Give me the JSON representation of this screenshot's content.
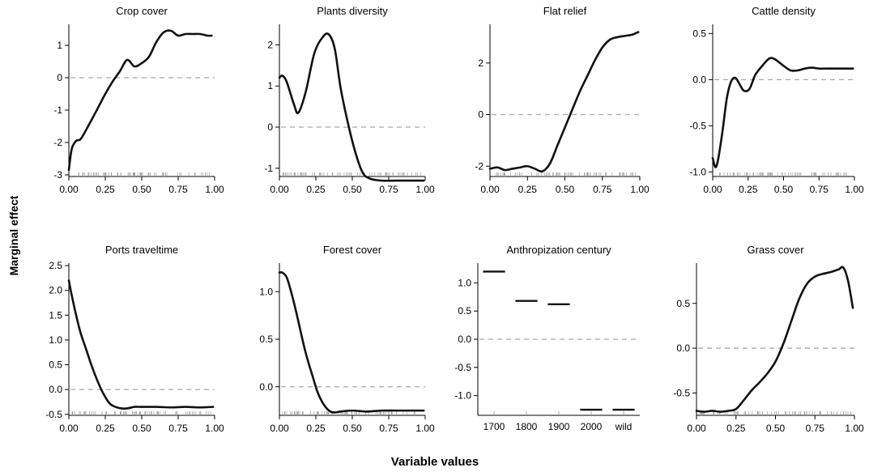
{
  "figure": {
    "ylabel": "Marginal effect",
    "xlabel": "Variable values"
  },
  "chart_data": [
    {
      "type": "line",
      "title": "Crop cover",
      "xlim": [
        0,
        1
      ],
      "ylim": [
        -3.05,
        1.65
      ],
      "xticks": [
        0,
        0.25,
        0.5,
        0.75,
        1
      ],
      "xtick_labels": [
        "0.00",
        "0.25",
        "0.50",
        "0.75",
        "1.00"
      ],
      "yticks": [
        -3,
        -2,
        -1,
        0,
        1
      ],
      "ytick_labels": [
        "-3",
        "-2",
        "-1",
        "0",
        "1"
      ],
      "reference_line": 0,
      "x": [
        0.0,
        0.02,
        0.05,
        0.08,
        0.12,
        0.18,
        0.25,
        0.3,
        0.35,
        0.4,
        0.45,
        0.5,
        0.55,
        0.6,
        0.65,
        0.7,
        0.75,
        0.8,
        0.85,
        0.9,
        0.95,
        0.98
      ],
      "y": [
        -2.85,
        -2.2,
        -1.95,
        -1.9,
        -1.6,
        -1.1,
        -0.5,
        -0.12,
        0.2,
        0.55,
        0.35,
        0.45,
        0.65,
        1.1,
        1.4,
        1.45,
        1.3,
        1.35,
        1.35,
        1.35,
        1.3,
        1.3
      ]
    },
    {
      "type": "line",
      "title": "Plants diversity",
      "xlim": [
        0,
        1
      ],
      "ylim": [
        -1.2,
        2.5
      ],
      "xticks": [
        0,
        0.25,
        0.5,
        0.75,
        1
      ],
      "xtick_labels": [
        "0.00",
        "0.25",
        "0.50",
        "0.75",
        "1.00"
      ],
      "yticks": [
        -1,
        0,
        1,
        2
      ],
      "ytick_labels": [
        "-1",
        "0",
        "1",
        "2"
      ],
      "reference_line": 0,
      "x": [
        0.0,
        0.02,
        0.05,
        0.1,
        0.13,
        0.18,
        0.24,
        0.3,
        0.34,
        0.38,
        0.42,
        0.47,
        0.52,
        0.57,
        0.62,
        0.7,
        0.8,
        0.9,
        0.99
      ],
      "y": [
        1.2,
        1.25,
        1.1,
        0.55,
        0.35,
        0.85,
        1.8,
        2.2,
        2.25,
        1.9,
        0.95,
        0.1,
        -0.6,
        -1.1,
        -1.25,
        -1.3,
        -1.3,
        -1.3,
        -1.3
      ]
    },
    {
      "type": "line",
      "title": "Flat relief",
      "xlim": [
        0,
        1
      ],
      "ylim": [
        -2.4,
        3.5
      ],
      "xticks": [
        0,
        0.25,
        0.5,
        0.75,
        1
      ],
      "xtick_labels": [
        "0.00",
        "0.25",
        "0.50",
        "0.75",
        "1.00"
      ],
      "yticks": [
        -2,
        0,
        2
      ],
      "ytick_labels": [
        "-2",
        "0",
        "2"
      ],
      "reference_line": 0,
      "x": [
        0.0,
        0.05,
        0.1,
        0.15,
        0.2,
        0.25,
        0.3,
        0.35,
        0.4,
        0.45,
        0.5,
        0.55,
        0.6,
        0.65,
        0.7,
        0.75,
        0.8,
        0.85,
        0.9,
        0.95,
        0.99
      ],
      "y": [
        -2.1,
        -2.05,
        -2.15,
        -2.1,
        -2.05,
        -2.0,
        -2.1,
        -2.2,
        -1.9,
        -1.2,
        -0.5,
        0.2,
        0.9,
        1.5,
        2.1,
        2.6,
        2.9,
        3.0,
        3.05,
        3.1,
        3.2
      ]
    },
    {
      "type": "line",
      "title": "Cattle density",
      "xlim": [
        0,
        1
      ],
      "ylim": [
        -1.05,
        0.6
      ],
      "xticks": [
        0,
        0.25,
        0.5,
        0.75,
        1
      ],
      "xtick_labels": [
        "0.00",
        "0.25",
        "0.50",
        "0.75",
        "1.00"
      ],
      "yticks": [
        -1.0,
        -0.5,
        0.0,
        0.5
      ],
      "ytick_labels": [
        "-1.0",
        "-0.5",
        "0.0",
        "0.5"
      ],
      "reference_line": 0,
      "x": [
        0.0,
        0.02,
        0.04,
        0.07,
        0.1,
        0.13,
        0.16,
        0.19,
        0.22,
        0.26,
        0.3,
        0.35,
        0.4,
        0.44,
        0.5,
        0.55,
        0.6,
        0.65,
        0.7,
        0.75,
        0.8,
        0.9,
        0.99
      ],
      "y": [
        -0.85,
        -0.95,
        -0.85,
        -0.55,
        -0.2,
        -0.02,
        0.02,
        -0.05,
        -0.12,
        -0.1,
        0.05,
        0.15,
        0.23,
        0.22,
        0.15,
        0.1,
        0.1,
        0.12,
        0.13,
        0.12,
        0.12,
        0.12,
        0.12
      ]
    },
    {
      "type": "line",
      "title": "Ports traveltime",
      "xlim": [
        0,
        1
      ],
      "ylim": [
        -0.52,
        2.55
      ],
      "xticks": [
        0,
        0.25,
        0.5,
        0.75,
        1
      ],
      "xtick_labels": [
        "0.00",
        "0.25",
        "0.50",
        "0.75",
        "1.00"
      ],
      "yticks": [
        -0.5,
        0.0,
        0.5,
        1.0,
        1.5,
        2.0,
        2.5
      ],
      "ytick_labels": [
        "-0.5",
        "0.0",
        "0.5",
        "1.0",
        "1.5",
        "2.0",
        "2.5"
      ],
      "reference_line": 0,
      "x": [
        0.0,
        0.02,
        0.05,
        0.08,
        0.12,
        0.16,
        0.2,
        0.24,
        0.28,
        0.32,
        0.36,
        0.4,
        0.45,
        0.5,
        0.6,
        0.7,
        0.8,
        0.9,
        0.99
      ],
      "y": [
        2.2,
        1.9,
        1.5,
        1.15,
        0.8,
        0.45,
        0.15,
        -0.1,
        -0.28,
        -0.35,
        -0.38,
        -0.38,
        -0.35,
        -0.35,
        -0.35,
        -0.36,
        -0.35,
        -0.36,
        -0.35
      ]
    },
    {
      "type": "line",
      "title": "Forest cover",
      "xlim": [
        0,
        1
      ],
      "ylim": [
        -0.3,
        1.3
      ],
      "xticks": [
        0,
        0.25,
        0.5,
        0.75,
        1
      ],
      "xtick_labels": [
        "0.00",
        "0.25",
        "0.50",
        "0.75",
        "1.00"
      ],
      "yticks": [
        0.0,
        0.5,
        1.0
      ],
      "ytick_labels": [
        "0.0",
        "0.5",
        "1.0"
      ],
      "reference_line": 0,
      "x": [
        0.0,
        0.02,
        0.05,
        0.08,
        0.11,
        0.14,
        0.17,
        0.2,
        0.23,
        0.26,
        0.29,
        0.32,
        0.35,
        0.38,
        0.42,
        0.5,
        0.6,
        0.7,
        0.8,
        0.9,
        0.99
      ],
      "y": [
        1.2,
        1.2,
        1.15,
        1.0,
        0.82,
        0.62,
        0.42,
        0.25,
        0.1,
        -0.05,
        -0.15,
        -0.22,
        -0.26,
        -0.27,
        -0.26,
        -0.25,
        -0.26,
        -0.25,
        -0.25,
        -0.25,
        -0.25
      ]
    },
    {
      "type": "line",
      "title": "Anthropization century",
      "categorical": true,
      "categories": [
        "1700",
        "1800",
        "1900",
        "2000",
        "wild"
      ],
      "ylim": [
        -1.35,
        1.35
      ],
      "yticks": [
        -1.0,
        -0.5,
        0.0,
        0.5,
        1.0
      ],
      "ytick_labels": [
        "-1.0",
        "-0.5",
        "0.0",
        "0.5",
        "1.0"
      ],
      "reference_line": 0,
      "values": [
        1.2,
        0.68,
        0.62,
        -1.25,
        -1.25
      ]
    },
    {
      "type": "line",
      "title": "Grass cover",
      "xlim": [
        0,
        1
      ],
      "ylim": [
        -0.75,
        0.95
      ],
      "xticks": [
        0,
        0.25,
        0.5,
        0.75,
        1
      ],
      "xtick_labels": [
        "0.00",
        "0.25",
        "0.50",
        "0.75",
        "1.00"
      ],
      "yticks": [
        -0.5,
        0.0,
        0.5
      ],
      "ytick_labels": [
        "-0.5",
        "0.0",
        "0.5"
      ],
      "reference_line": 0,
      "x": [
        0.0,
        0.05,
        0.1,
        0.15,
        0.2,
        0.25,
        0.3,
        0.35,
        0.4,
        0.45,
        0.5,
        0.55,
        0.6,
        0.65,
        0.7,
        0.75,
        0.8,
        0.85,
        0.9,
        0.93,
        0.96,
        0.99
      ],
      "y": [
        -0.7,
        -0.71,
        -0.7,
        -0.71,
        -0.7,
        -0.68,
        -0.58,
        -0.47,
        -0.38,
        -0.28,
        -0.15,
        0.05,
        0.3,
        0.55,
        0.72,
        0.8,
        0.83,
        0.85,
        0.88,
        0.9,
        0.75,
        0.45
      ]
    }
  ]
}
